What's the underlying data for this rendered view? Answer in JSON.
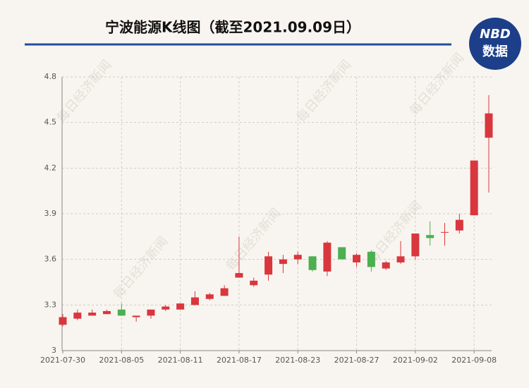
{
  "chart_data": {
    "type": "candlestick",
    "title": "宁波能源K线图（截至2021.09.09日）",
    "logo": {
      "top": "NBD",
      "bottom": "数据"
    },
    "watermark": "每日经济新闻",
    "categories": [
      "2021-07-30",
      null,
      null,
      null,
      "2021-08-05",
      null,
      null,
      null,
      "2021-08-11",
      null,
      null,
      null,
      "2021-08-17",
      null,
      null,
      null,
      "2021-08-23",
      null,
      null,
      null,
      "2021-08-27",
      null,
      null,
      null,
      "2021-09-02",
      null,
      null,
      null,
      "2021-09-08",
      null
    ],
    "open": [
      3.17,
      3.21,
      3.23,
      3.24,
      3.27,
      3.22,
      3.23,
      3.27,
      3.27,
      3.3,
      3.34,
      3.36,
      3.48,
      3.43,
      3.5,
      3.57,
      3.6,
      3.62,
      3.52,
      3.68,
      3.58,
      3.65,
      3.54,
      3.58,
      3.62,
      3.76,
      3.78,
      3.79,
      3.89,
      4.4
    ],
    "high": [
      3.24,
      3.27,
      3.27,
      3.27,
      3.31,
      3.23,
      3.27,
      3.3,
      3.31,
      3.39,
      3.38,
      3.43,
      3.75,
      3.48,
      3.65,
      3.63,
      3.65,
      3.62,
      3.72,
      3.68,
      3.64,
      3.66,
      3.59,
      3.72,
      3.77,
      3.85,
      3.84,
      3.9,
      4.25,
      4.68
    ],
    "low": [
      3.16,
      3.2,
      3.23,
      3.24,
      3.23,
      3.19,
      3.21,
      3.26,
      3.27,
      3.3,
      3.33,
      3.36,
      3.48,
      3.42,
      3.46,
      3.51,
      3.57,
      3.52,
      3.49,
      3.6,
      3.55,
      3.52,
      3.53,
      3.57,
      3.6,
      3.69,
      3.69,
      3.77,
      3.89,
      4.04
    ],
    "close": [
      3.22,
      3.25,
      3.25,
      3.26,
      3.23,
      3.23,
      3.27,
      3.29,
      3.31,
      3.35,
      3.37,
      3.41,
      3.51,
      3.46,
      3.62,
      3.6,
      3.63,
      3.53,
      3.71,
      3.6,
      3.63,
      3.55,
      3.58,
      3.62,
      3.77,
      3.74,
      3.78,
      3.86,
      4.25,
      4.56
    ],
    "up_color": "#d9363e",
    "down_color": "#4caf50",
    "ylim": [
      3,
      4.8
    ],
    "yticks": [
      3,
      3.3,
      3.6,
      3.9,
      4.2,
      4.5,
      4.8
    ],
    "grid": true
  }
}
